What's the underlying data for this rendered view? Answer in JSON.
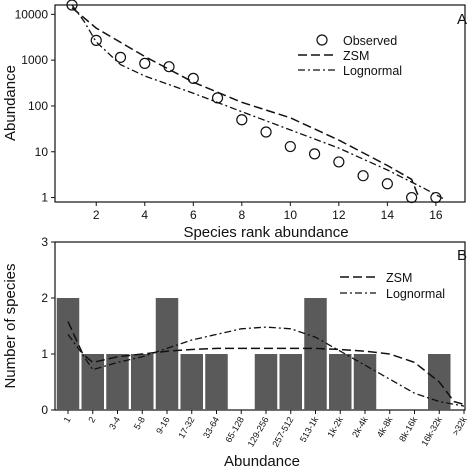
{
  "chart_data": [
    {
      "type": "scatter",
      "panel_label": "A",
      "xlabel": "Species rank abundance",
      "ylabel": "Abundance",
      "y_scale": "log",
      "xlim": [
        0.3,
        17.2
      ],
      "ylim": [
        0.8,
        16000
      ],
      "x_ticks": [
        2,
        4,
        6,
        8,
        10,
        12,
        14,
        16
      ],
      "y_ticks": [
        1,
        10,
        100,
        1000,
        10000
      ],
      "y_tick_labels": [
        "1",
        "10",
        "100",
        "1000",
        "10000"
      ],
      "legend": {
        "placement": "top-right",
        "entries": [
          "Observed",
          "ZSM",
          "Lognormal"
        ]
      },
      "series": [
        {
          "name": "Observed",
          "style": "open-circle",
          "x": [
            1,
            2,
            3,
            4,
            5,
            6,
            7,
            8,
            9,
            10,
            11,
            12,
            13,
            14,
            15,
            16
          ],
          "y": [
            16000,
            2700,
            1150,
            850,
            720,
            400,
            150,
            50,
            27,
            13,
            9,
            6,
            3,
            2,
            1,
            1
          ]
        },
        {
          "name": "ZSM",
          "style": "dashed",
          "x": [
            1,
            2,
            4,
            6,
            8,
            10,
            12,
            14,
            15,
            15.3
          ],
          "y": [
            14000,
            5000,
            1200,
            330,
            120,
            55,
            18,
            5,
            2.5,
            1
          ]
        },
        {
          "name": "Lognormal",
          "style": "dash-dot",
          "x": [
            1,
            1.5,
            2,
            3,
            4,
            6,
            8,
            10,
            12,
            14,
            15.5,
            16.3
          ],
          "y": [
            16000,
            7000,
            2500,
            800,
            450,
            190,
            75,
            30,
            12,
            4,
            1.6,
            0.95
          ]
        }
      ]
    },
    {
      "type": "bar",
      "panel_label": "B",
      "xlabel": "Abundance",
      "ylabel": "Number of species",
      "ylim": [
        0,
        3
      ],
      "y_ticks": [
        0,
        1,
        2,
        3
      ],
      "categories": [
        "1",
        "2",
        "3-4",
        "5-8",
        "9-16",
        "17-32",
        "33-64",
        "65-128",
        "129-256",
        "257-512",
        "513-1k",
        "1k-2k",
        "2k-4k",
        "4k-8k",
        "8k-16k",
        "16k-32k",
        ">32k"
      ],
      "values": [
        2,
        1,
        1,
        1,
        2,
        1,
        1,
        0,
        1,
        1,
        2,
        1,
        1,
        0,
        0,
        1,
        0
      ],
      "legend": {
        "placement": "top-right",
        "entries": [
          "ZSM",
          "Lognormal"
        ]
      },
      "series": [
        {
          "name": "ZSM",
          "style": "dashed",
          "x": [
            0,
            0.6,
            1,
            2,
            3,
            4,
            5,
            6,
            7,
            8,
            9,
            10,
            11,
            12,
            13,
            14,
            15,
            15.6,
            16
          ],
          "y": [
            1.58,
            1.0,
            0.85,
            0.95,
            1.0,
            1.05,
            1.08,
            1.1,
            1.1,
            1.1,
            1.1,
            1.1,
            1.08,
            1.05,
            1.0,
            0.85,
            0.5,
            0.15,
            0.1
          ]
        },
        {
          "name": "Lognormal",
          "style": "dash-dot",
          "x": [
            0,
            0.5,
            1,
            2,
            3,
            4,
            5,
            6,
            7,
            8,
            9,
            10,
            11,
            12,
            13,
            14,
            15,
            16
          ],
          "y": [
            1.35,
            1.05,
            0.72,
            0.85,
            0.95,
            1.1,
            1.25,
            1.35,
            1.45,
            1.48,
            1.45,
            1.3,
            1.05,
            0.8,
            0.55,
            0.3,
            0.15,
            0.07
          ]
        }
      ]
    }
  ],
  "colors": {
    "bar": "#5a5a5a",
    "ink": "#111111"
  }
}
